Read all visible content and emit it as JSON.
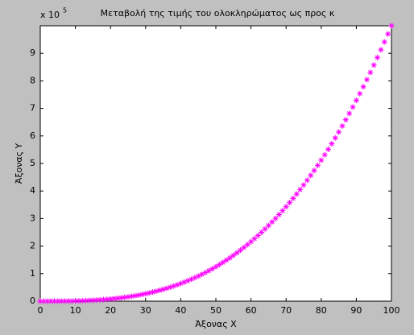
{
  "chart_data": {
    "type": "scatter",
    "title": "Μεταβολή της τιμής του ολοκληρώματος ως προς κ",
    "x_label": "Άξονας Χ",
    "y_label": "Άξονας Υ",
    "y_multiplier": {
      "base": "x 10",
      "exponent": "5"
    },
    "marker": "star",
    "color": "#ff00ff",
    "grid": false,
    "xlim": [
      0,
      100
    ],
    "xticks": [
      0,
      10,
      20,
      30,
      40,
      50,
      60,
      70,
      80,
      90,
      100
    ],
    "ylim": [
      0,
      1000000
    ],
    "yticks": [
      {
        "value": 0,
        "label": "0"
      },
      {
        "value": 100000,
        "label": "1"
      },
      {
        "value": 200000,
        "label": "2"
      },
      {
        "value": 300000,
        "label": "3"
      },
      {
        "value": 400000,
        "label": "4"
      },
      {
        "value": 500000,
        "label": "5"
      },
      {
        "value": 600000,
        "label": "6"
      },
      {
        "value": 700000,
        "label": "7"
      },
      {
        "value": 800000,
        "label": "8"
      },
      {
        "value": 900000,
        "label": "9"
      }
    ],
    "x": [
      0,
      1,
      2,
      3,
      4,
      5,
      6,
      7,
      8,
      9,
      10,
      11,
      12,
      13,
      14,
      15,
      16,
      17,
      18,
      19,
      20,
      21,
      22,
      23,
      24,
      25,
      26,
      27,
      28,
      29,
      30,
      31,
      32,
      33,
      34,
      35,
      36,
      37,
      38,
      39,
      40,
      41,
      42,
      43,
      44,
      45,
      46,
      47,
      48,
      49,
      50,
      51,
      52,
      53,
      54,
      55,
      56,
      57,
      58,
      59,
      60,
      61,
      62,
      63,
      64,
      65,
      66,
      67,
      68,
      69,
      70,
      71,
      72,
      73,
      74,
      75,
      76,
      77,
      78,
      79,
      80,
      81,
      82,
      83,
      84,
      85,
      86,
      87,
      88,
      89,
      90,
      91,
      92,
      93,
      94,
      95,
      96,
      97,
      98,
      99,
      100
    ],
    "values": [
      0,
      1,
      8,
      27,
      64,
      125,
      216,
      343,
      512,
      729,
      1000,
      1331,
      1728,
      2197,
      2744,
      3375,
      4096,
      4913,
      5832,
      6859,
      8000,
      9261,
      10648,
      12167,
      13824,
      15625,
      17576,
      19683,
      21952,
      24389,
      27000,
      29791,
      32768,
      35937,
      39304,
      42875,
      46656,
      50653,
      54872,
      59319,
      64000,
      68921,
      74088,
      79507,
      85184,
      91125,
      97336,
      103823,
      110592,
      117649,
      125000,
      132651,
      140608,
      148877,
      157464,
      166375,
      175616,
      185193,
      195112,
      205379,
      216000,
      226981,
      238328,
      250047,
      262144,
      274625,
      287496,
      300763,
      314432,
      328509,
      343000,
      357911,
      373248,
      389017,
      405224,
      421875,
      438976,
      456533,
      474552,
      493039,
      512000,
      531441,
      551368,
      571787,
      592704,
      614125,
      636056,
      658503,
      681472,
      704969,
      729000,
      753571,
      778688,
      804357,
      830584,
      857375,
      884736,
      912673,
      941192,
      970299,
      1000000
    ]
  }
}
